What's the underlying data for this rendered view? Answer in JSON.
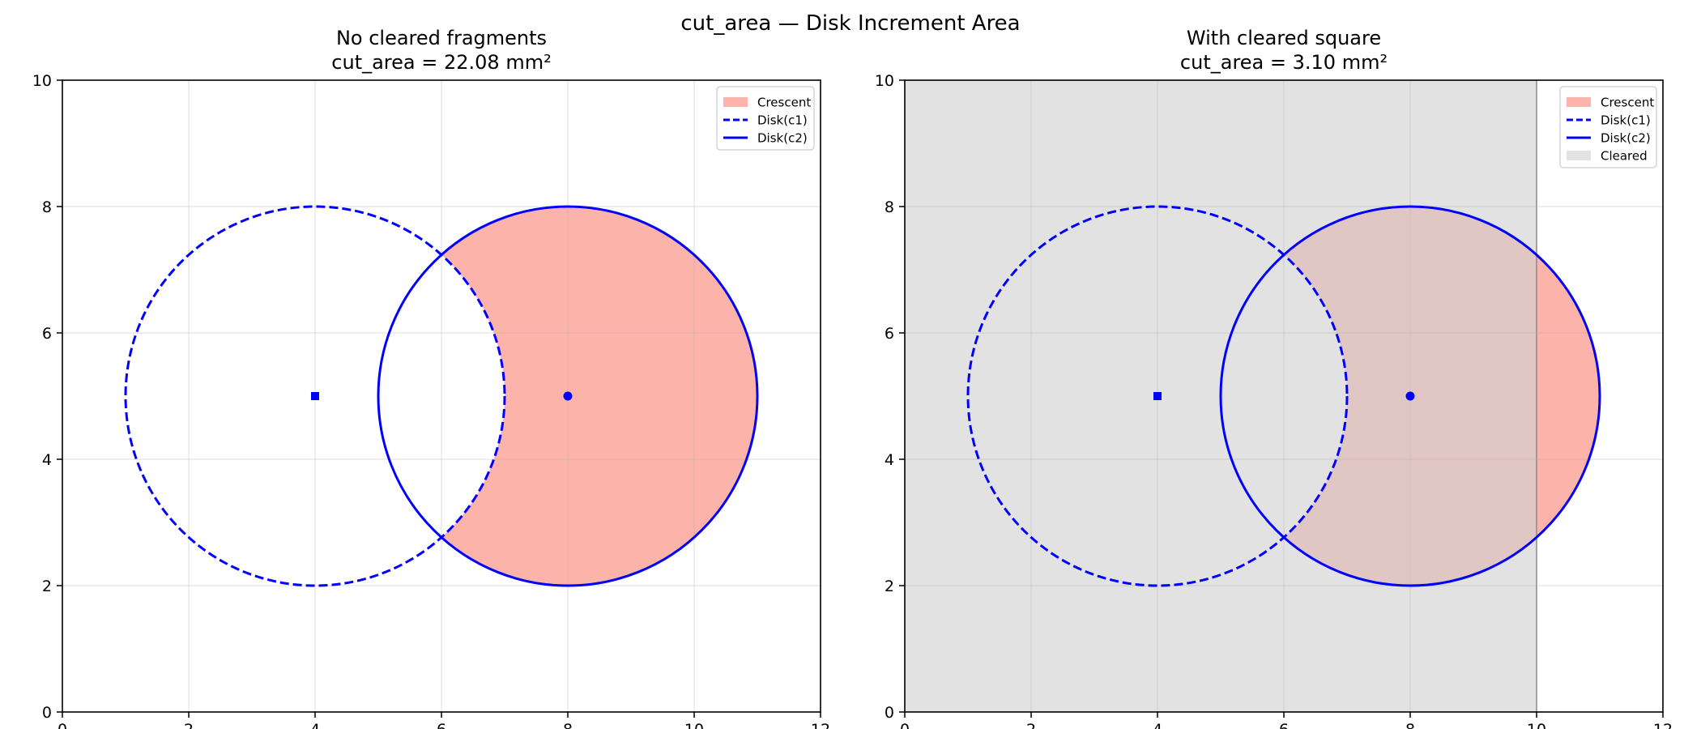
{
  "figure": {
    "suptitle": "cut_area — Disk Increment Area"
  },
  "chart_data": [
    {
      "type": "area",
      "title_line1": "No cleared fragments",
      "title_line2": "cut_area = 22.08 mm²",
      "xlim": [
        0,
        12
      ],
      "ylim": [
        0,
        10
      ],
      "xticks": [
        0,
        2,
        4,
        6,
        8,
        10,
        12
      ],
      "yticks": [
        0,
        2,
        4,
        6,
        8,
        10
      ],
      "grid": true,
      "legend_position": "top-right",
      "disk_c1": {
        "center": [
          4,
          5
        ],
        "radius": 3
      },
      "disk_c2": {
        "center": [
          8,
          5
        ],
        "radius": 3
      },
      "cleared": null,
      "legend": [
        {
          "label": "Crescent",
          "style": "patch-crescent"
        },
        {
          "label": "Disk(c1)",
          "style": "dashed"
        },
        {
          "label": "Disk(c2)",
          "style": "solid"
        }
      ]
    },
    {
      "type": "area",
      "title_line1": "With cleared square",
      "title_line2": "cut_area = 3.10 mm²",
      "xlim": [
        0,
        12
      ],
      "ylim": [
        0,
        10
      ],
      "xticks": [
        0,
        2,
        4,
        6,
        8,
        10,
        12
      ],
      "yticks": [
        0,
        2,
        4,
        6,
        8,
        10
      ],
      "grid": true,
      "legend_position": "top-right",
      "disk_c1": {
        "center": [
          4,
          5
        ],
        "radius": 3
      },
      "disk_c2": {
        "center": [
          8,
          5
        ],
        "radius": 3
      },
      "cleared": {
        "x0": 0,
        "x1": 10,
        "y0": 0,
        "y1": 10
      },
      "legend": [
        {
          "label": "Crescent",
          "style": "patch-crescent"
        },
        {
          "label": "Disk(c1)",
          "style": "dashed"
        },
        {
          "label": "Disk(c2)",
          "style": "solid"
        },
        {
          "label": "Cleared",
          "style": "patch-cleared"
        }
      ]
    }
  ],
  "colors": {
    "crescent": "#fa8072",
    "disk": "#0000ff",
    "cleared": "#d3d3d3",
    "grid": "#e6e6e6",
    "axis": "#000000"
  }
}
